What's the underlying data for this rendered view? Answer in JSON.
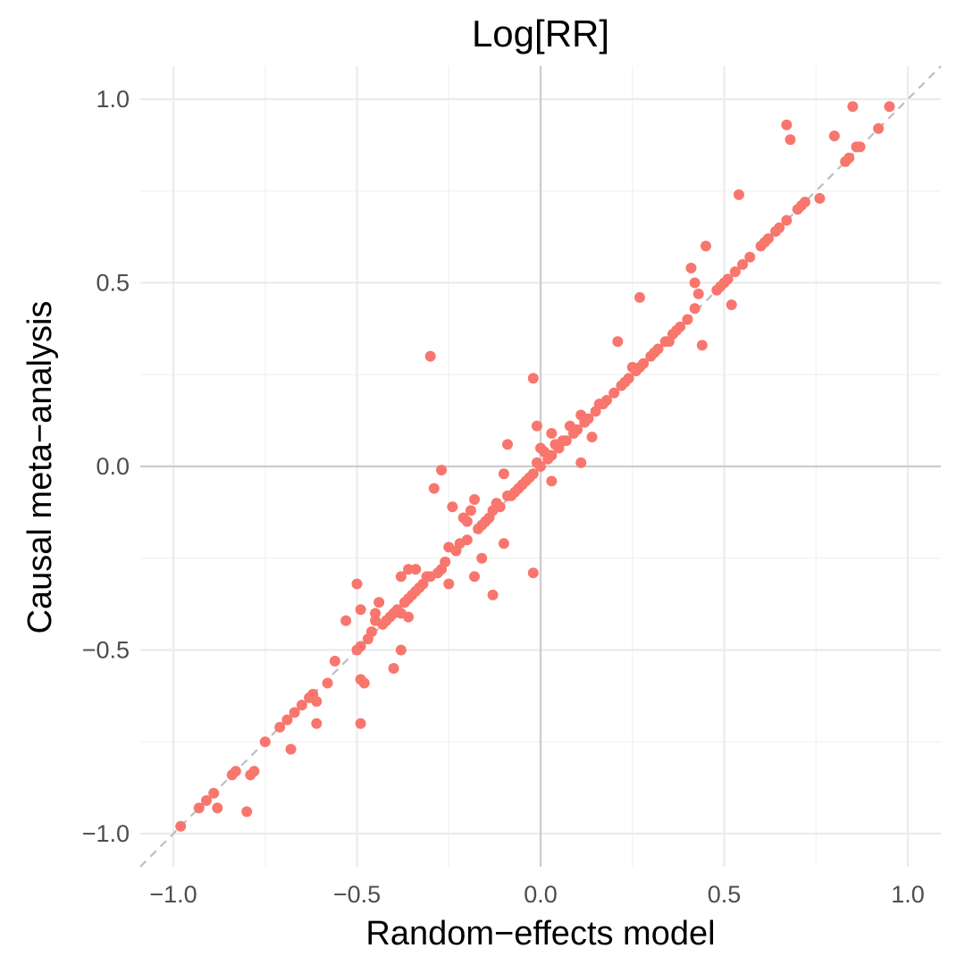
{
  "chart_data": {
    "type": "scatter",
    "title": "Log[RR]",
    "xlabel": "Random−effects model",
    "ylabel": "Causal meta−analysis",
    "xlim": [
      -1.09,
      1.09
    ],
    "ylim": [
      -1.09,
      1.09
    ],
    "xticks": [
      -1.0,
      -0.5,
      0.0,
      0.5,
      1.0
    ],
    "yticks": [
      -1.0,
      -0.5,
      0.0,
      0.5,
      1.0
    ],
    "xtick_labels": [
      "−1.0",
      "−0.5",
      "0.0",
      "0.5",
      "1.0"
    ],
    "ytick_labels": [
      "−1.0",
      "−0.5",
      "0.0",
      "0.5",
      "1.0"
    ],
    "grid": true,
    "reference_lines": {
      "identity": true,
      "x_zero": true,
      "y_zero": true
    },
    "point_color": "#F8766D",
    "series": [
      {
        "points": [
          [
            -0.98,
            -0.98
          ],
          [
            -0.93,
            -0.93
          ],
          [
            -0.91,
            -0.91
          ],
          [
            -0.89,
            -0.89
          ],
          [
            -0.88,
            -0.93
          ],
          [
            -0.84,
            -0.84
          ],
          [
            -0.83,
            -0.83
          ],
          [
            -0.8,
            -0.94
          ],
          [
            -0.79,
            -0.84
          ],
          [
            -0.78,
            -0.83
          ],
          [
            -0.75,
            -0.75
          ],
          [
            -0.71,
            -0.71
          ],
          [
            -0.69,
            -0.69
          ],
          [
            -0.68,
            -0.77
          ],
          [
            -0.67,
            -0.67
          ],
          [
            -0.65,
            -0.65
          ],
          [
            -0.63,
            -0.63
          ],
          [
            -0.62,
            -0.62
          ],
          [
            -0.61,
            -0.64
          ],
          [
            -0.61,
            -0.7
          ],
          [
            -0.58,
            -0.59
          ],
          [
            -0.56,
            -0.53
          ],
          [
            -0.53,
            -0.42
          ],
          [
            -0.5,
            -0.32
          ],
          [
            -0.5,
            -0.5
          ],
          [
            -0.49,
            -0.49
          ],
          [
            -0.49,
            -0.39
          ],
          [
            -0.49,
            -0.58
          ],
          [
            -0.48,
            -0.59
          ],
          [
            -0.49,
            -0.7
          ],
          [
            -0.47,
            -0.47
          ],
          [
            -0.46,
            -0.45
          ],
          [
            -0.45,
            -0.4
          ],
          [
            -0.45,
            -0.42
          ],
          [
            -0.44,
            -0.37
          ],
          [
            -0.43,
            -0.43
          ],
          [
            -0.42,
            -0.42
          ],
          [
            -0.41,
            -0.41
          ],
          [
            -0.4,
            -0.4
          ],
          [
            -0.39,
            -0.39
          ],
          [
            -0.4,
            -0.55
          ],
          [
            -0.38,
            -0.5
          ],
          [
            -0.38,
            -0.4
          ],
          [
            -0.37,
            -0.37
          ],
          [
            -0.38,
            -0.3
          ],
          [
            -0.36,
            -0.36
          ],
          [
            -0.35,
            -0.35
          ],
          [
            -0.36,
            -0.41
          ],
          [
            -0.36,
            -0.28
          ],
          [
            -0.34,
            -0.34
          ],
          [
            -0.33,
            -0.33
          ],
          [
            -0.34,
            -0.28
          ],
          [
            -0.32,
            -0.32
          ],
          [
            -0.31,
            -0.3
          ],
          [
            -0.3,
            0.3
          ],
          [
            -0.3,
            -0.3
          ],
          [
            -0.29,
            -0.06
          ],
          [
            -0.28,
            -0.29
          ],
          [
            -0.27,
            -0.28
          ],
          [
            -0.27,
            -0.01
          ],
          [
            -0.26,
            -0.26
          ],
          [
            -0.25,
            -0.32
          ],
          [
            -0.25,
            -0.22
          ],
          [
            -0.24,
            -0.11
          ],
          [
            -0.23,
            -0.23
          ],
          [
            -0.22,
            -0.21
          ],
          [
            -0.21,
            -0.14
          ],
          [
            -0.2,
            -0.2
          ],
          [
            -0.2,
            -0.15
          ],
          [
            -0.19,
            -0.12
          ],
          [
            -0.18,
            -0.09
          ],
          [
            -0.18,
            -0.3
          ],
          [
            -0.17,
            -0.17
          ],
          [
            -0.16,
            -0.25
          ],
          [
            -0.16,
            -0.16
          ],
          [
            -0.15,
            -0.15
          ],
          [
            -0.14,
            -0.14
          ],
          [
            -0.13,
            -0.12
          ],
          [
            -0.13,
            -0.35
          ],
          [
            -0.12,
            -0.1
          ],
          [
            -0.11,
            -0.11
          ],
          [
            -0.1,
            -0.21
          ],
          [
            -0.1,
            -0.02
          ],
          [
            -0.09,
            0.06
          ],
          [
            -0.09,
            -0.08
          ],
          [
            -0.08,
            -0.08
          ],
          [
            -0.07,
            -0.07
          ],
          [
            -0.06,
            -0.06
          ],
          [
            -0.05,
            -0.05
          ],
          [
            -0.04,
            -0.04
          ],
          [
            -0.03,
            -0.03
          ],
          [
            -0.02,
            -0.02
          ],
          [
            -0.02,
            0.24
          ],
          [
            -0.02,
            -0.29
          ],
          [
            -0.01,
            0.11
          ],
          [
            -0.01,
            0.01
          ],
          [
            0.0,
            0.0
          ],
          [
            0.0,
            0.05
          ],
          [
            0.01,
            0.04
          ],
          [
            0.02,
            0.02
          ],
          [
            0.02,
            0.03
          ],
          [
            0.03,
            0.03
          ],
          [
            0.03,
            0.09
          ],
          [
            0.03,
            -0.04
          ],
          [
            0.04,
            0.06
          ],
          [
            0.05,
            0.05
          ],
          [
            0.06,
            0.07
          ],
          [
            0.07,
            0.07
          ],
          [
            0.08,
            0.11
          ],
          [
            0.09,
            0.09
          ],
          [
            0.1,
            0.1
          ],
          [
            0.11,
            0.14
          ],
          [
            0.11,
            0.01
          ],
          [
            0.12,
            0.12
          ],
          [
            0.13,
            0.13
          ],
          [
            0.14,
            0.08
          ],
          [
            0.15,
            0.15
          ],
          [
            0.16,
            0.17
          ],
          [
            0.17,
            0.17
          ],
          [
            0.18,
            0.18
          ],
          [
            0.2,
            0.2
          ],
          [
            0.21,
            0.34
          ],
          [
            0.22,
            0.22
          ],
          [
            0.23,
            0.23
          ],
          [
            0.24,
            0.24
          ],
          [
            0.25,
            0.27
          ],
          [
            0.26,
            0.26
          ],
          [
            0.27,
            0.27
          ],
          [
            0.27,
            0.46
          ],
          [
            0.28,
            0.28
          ],
          [
            0.3,
            0.3
          ],
          [
            0.31,
            0.31
          ],
          [
            0.32,
            0.32
          ],
          [
            0.34,
            0.34
          ],
          [
            0.35,
            0.34
          ],
          [
            0.36,
            0.36
          ],
          [
            0.37,
            0.37
          ],
          [
            0.38,
            0.38
          ],
          [
            0.4,
            0.4
          ],
          [
            0.41,
            0.54
          ],
          [
            0.42,
            0.43
          ],
          [
            0.42,
            0.5
          ],
          [
            0.43,
            0.47
          ],
          [
            0.44,
            0.33
          ],
          [
            0.45,
            0.6
          ],
          [
            0.48,
            0.48
          ],
          [
            0.49,
            0.49
          ],
          [
            0.5,
            0.5
          ],
          [
            0.51,
            0.51
          ],
          [
            0.52,
            0.44
          ],
          [
            0.53,
            0.53
          ],
          [
            0.54,
            0.74
          ],
          [
            0.55,
            0.55
          ],
          [
            0.57,
            0.57
          ],
          [
            0.6,
            0.6
          ],
          [
            0.61,
            0.61
          ],
          [
            0.62,
            0.62
          ],
          [
            0.64,
            0.64
          ],
          [
            0.65,
            0.65
          ],
          [
            0.67,
            0.67
          ],
          [
            0.67,
            0.93
          ],
          [
            0.68,
            0.89
          ],
          [
            0.7,
            0.7
          ],
          [
            0.71,
            0.71
          ],
          [
            0.72,
            0.72
          ],
          [
            0.76,
            0.73
          ],
          [
            0.8,
            0.9
          ],
          [
            0.83,
            0.83
          ],
          [
            0.84,
            0.84
          ],
          [
            0.85,
            0.98
          ],
          [
            0.86,
            0.87
          ],
          [
            0.87,
            0.87
          ],
          [
            0.92,
            0.92
          ],
          [
            0.95,
            0.98
          ]
        ]
      }
    ]
  }
}
